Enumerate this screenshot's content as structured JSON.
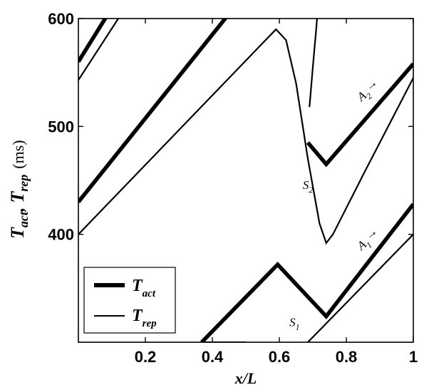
{
  "chart_data": {
    "type": "line",
    "xlabel": "x/L",
    "ylabel": {
      "main1": "T",
      "sub1": "act",
      "sep": ",",
      "main2": "T",
      "sub2": "rep",
      "unit": "(ms)"
    },
    "xlim": [
      0,
      1
    ],
    "ylim": [
      300,
      600
    ],
    "xticks": [
      {
        "value": 0.2,
        "label": "0.2"
      },
      {
        "value": 0.4,
        "label": "0.4"
      },
      {
        "value": 0.6,
        "label": "0.6"
      },
      {
        "value": 0.8,
        "label": "0.8"
      },
      {
        "value": 1.0,
        "label": "1"
      }
    ],
    "yticks": [
      {
        "value": 400,
        "label": "400"
      },
      {
        "value": 500,
        "label": "500"
      },
      {
        "value": 600,
        "label": "600"
      }
    ],
    "grid": false,
    "legend_position": "bottom-left",
    "legend": [
      {
        "main": "T",
        "sub": "act",
        "style": "thick"
      },
      {
        "main": "T",
        "sub": "rep",
        "style": "thin"
      }
    ],
    "annotations": [
      {
        "name": "A2-arrow",
        "main": "A",
        "sub": "2",
        "arrow": "→",
        "x": 0.845,
        "y": 523,
        "rotate": -40
      },
      {
        "name": "S2",
        "main": "S",
        "sub": "2",
        "x": 0.67,
        "y": 442,
        "rotate": 0
      },
      {
        "name": "A1-arrow",
        "main": "A",
        "sub": "1",
        "arrow": "→",
        "x": 0.845,
        "y": 385,
        "rotate": -40
      },
      {
        "name": "S1",
        "main": "S",
        "sub": "1",
        "x": 0.63,
        "y": 315,
        "rotate": 0
      }
    ],
    "series": [
      {
        "style": "thick",
        "points": [
          [
            0,
            560
          ],
          [
            0.1,
            610
          ]
        ]
      },
      {
        "style": "thin",
        "points": [
          [
            0,
            543
          ],
          [
            0.14,
            610
          ]
        ]
      },
      {
        "style": "thick",
        "points": [
          [
            0,
            430
          ],
          [
            0.464,
            610
          ]
        ]
      },
      {
        "style": "thin",
        "points": [
          [
            0,
            400
          ],
          [
            0.59,
            590
          ],
          [
            0.62,
            580
          ],
          [
            0.65,
            540
          ],
          [
            0.685,
            470
          ],
          [
            0.72,
            410
          ],
          [
            0.74,
            392
          ],
          [
            0.76,
            400
          ],
          [
            0.85,
            455
          ],
          [
            1.0,
            545
          ]
        ]
      },
      {
        "style": "thin",
        "points": [
          [
            0.69,
            518
          ],
          [
            0.7,
            555
          ],
          [
            0.71,
            590
          ],
          [
            0.715,
            610
          ]
        ]
      },
      {
        "style": "thick",
        "points": [
          [
            0.685,
            485
          ],
          [
            0.74,
            465
          ],
          [
            1.0,
            558
          ]
        ]
      },
      {
        "style": "thick",
        "points": [
          [
            0.368,
            300
          ],
          [
            0.595,
            372
          ],
          [
            0.74,
            324
          ],
          [
            1.0,
            428
          ]
        ]
      },
      {
        "style": "thin",
        "points": [
          [
            0.37,
            300
          ],
          [
            0.5,
            300
          ]
        ]
      },
      {
        "style": "thin",
        "points": [
          [
            0.685,
            300
          ],
          [
            1.0,
            400
          ]
        ]
      }
    ]
  }
}
